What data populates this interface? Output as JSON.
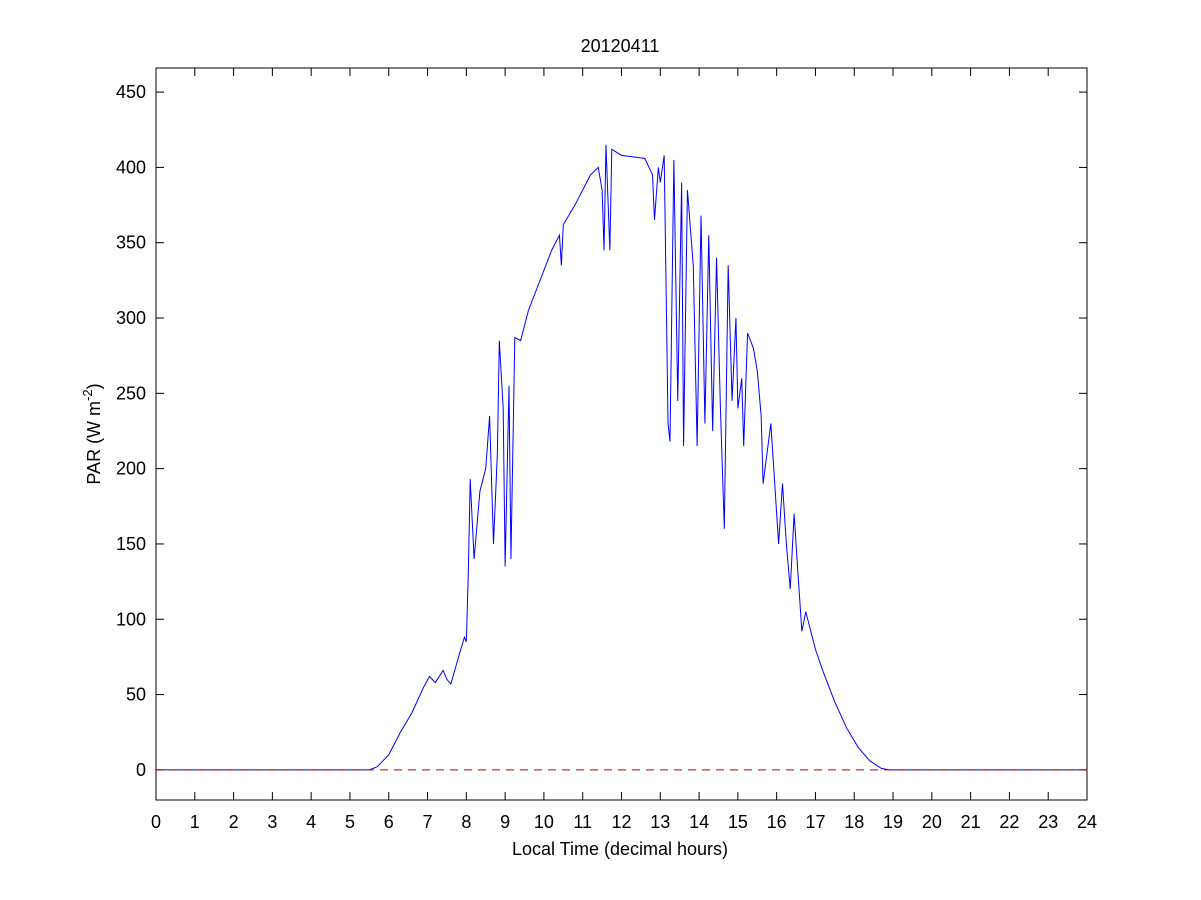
{
  "chart_data": {
    "type": "line",
    "title": "20120411",
    "xlabel": "Local Time (decimal hours)",
    "ylabel": [
      "PAR (W m",
      "-2",
      ")"
    ],
    "xlim": [
      0,
      24
    ],
    "ylim": [
      -20,
      466
    ],
    "xticks": [
      0,
      1,
      2,
      3,
      4,
      5,
      6,
      7,
      8,
      9,
      10,
      11,
      12,
      13,
      14,
      15,
      16,
      17,
      18,
      19,
      20,
      21,
      22,
      23,
      24
    ],
    "yticks": [
      0,
      50,
      100,
      150,
      200,
      250,
      300,
      350,
      400,
      450
    ],
    "grid": false,
    "series": [
      {
        "color": "#0000ff",
        "dash": false,
        "x": [
          0,
          5.5,
          5.7,
          6.0,
          6.3,
          6.6,
          6.9,
          7.05,
          7.2,
          7.4,
          7.5,
          7.6,
          7.8,
          7.95,
          8.0,
          8.05,
          8.1,
          8.2,
          8.35,
          8.5,
          8.6,
          8.7,
          8.8,
          8.85,
          8.95,
          9.0,
          9.1,
          9.15,
          9.25,
          9.4,
          9.6,
          9.9,
          10.2,
          10.4,
          10.45,
          10.5,
          10.8,
          11.0,
          11.2,
          11.4,
          11.5,
          11.55,
          11.6,
          11.7,
          11.75,
          12.0,
          12.3,
          12.6,
          12.8,
          12.85,
          12.95,
          13.0,
          13.1,
          13.2,
          13.25,
          13.35,
          13.45,
          13.55,
          13.6,
          13.7,
          13.85,
          13.95,
          14.05,
          14.15,
          14.25,
          14.35,
          14.45,
          14.55,
          14.65,
          14.75,
          14.85,
          14.95,
          15.0,
          15.1,
          15.15,
          15.25,
          15.4,
          15.5,
          15.6,
          15.65,
          15.75,
          15.85,
          15.95,
          16.05,
          16.15,
          16.25,
          16.35,
          16.45,
          16.55,
          16.65,
          16.75,
          16.9,
          17.0,
          17.2,
          17.5,
          17.8,
          18.1,
          18.4,
          18.7,
          18.9,
          24
        ],
        "values": [
          0,
          0,
          2,
          10,
          25,
          38,
          55,
          62,
          58,
          66,
          60,
          57,
          75,
          88,
          85,
          130,
          193,
          140,
          185,
          200,
          235,
          150,
          210,
          285,
          240,
          135,
          255,
          140,
          287,
          285,
          305,
          325,
          345,
          355,
          335,
          362,
          375,
          385,
          395,
          400,
          385,
          345,
          415,
          345,
          412,
          408,
          407,
          406,
          395,
          365,
          400,
          390,
          408,
          230,
          218,
          405,
          245,
          390,
          215,
          385,
          335,
          215,
          368,
          230,
          355,
          225,
          340,
          240,
          160,
          335,
          245,
          300,
          240,
          260,
          215,
          290,
          280,
          265,
          235,
          190,
          210,
          230,
          190,
          150,
          190,
          150,
          120,
          170,
          130,
          92,
          105,
          90,
          80,
          65,
          45,
          28,
          15,
          6,
          1,
          0,
          0
        ]
      },
      {
        "color": "#c00000",
        "dash": true,
        "x": [
          0,
          24
        ],
        "values": [
          0,
          0
        ]
      }
    ]
  }
}
